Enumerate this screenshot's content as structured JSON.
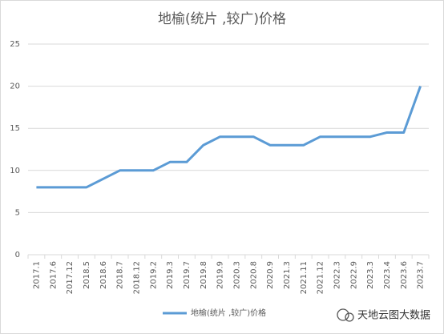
{
  "chart_data": {
    "type": "line",
    "title": "地榆(统片 ,较广)价格",
    "categories": [
      "2017.1",
      "2017.6",
      "2017.12",
      "2018.5",
      "2018.6",
      "2018.7",
      "2018.12",
      "2019.2",
      "2019.3",
      "2019.7",
      "2019.8",
      "2019.9",
      "2020.3",
      "2020.8",
      "2020.9",
      "2021.3",
      "2021.11",
      "2021.12",
      "2022.3",
      "2022.9",
      "2023.3",
      "2023.4",
      "2023.6",
      "2023.7"
    ],
    "series": [
      {
        "name": "地榆(统片 ,较广)价格",
        "color": "#5b9bd5",
        "values": [
          8,
          8,
          8,
          8,
          9,
          10,
          10,
          10,
          11,
          11,
          13,
          14,
          14,
          14,
          13,
          13,
          13,
          14,
          14,
          14,
          14,
          14.5,
          14.5,
          20
        ]
      }
    ],
    "ylim": [
      0,
      25
    ],
    "yticks": [
      0,
      5,
      10,
      15,
      20,
      25
    ],
    "grid": true,
    "legend": "bottom",
    "watermark": "天地云图大数据"
  }
}
